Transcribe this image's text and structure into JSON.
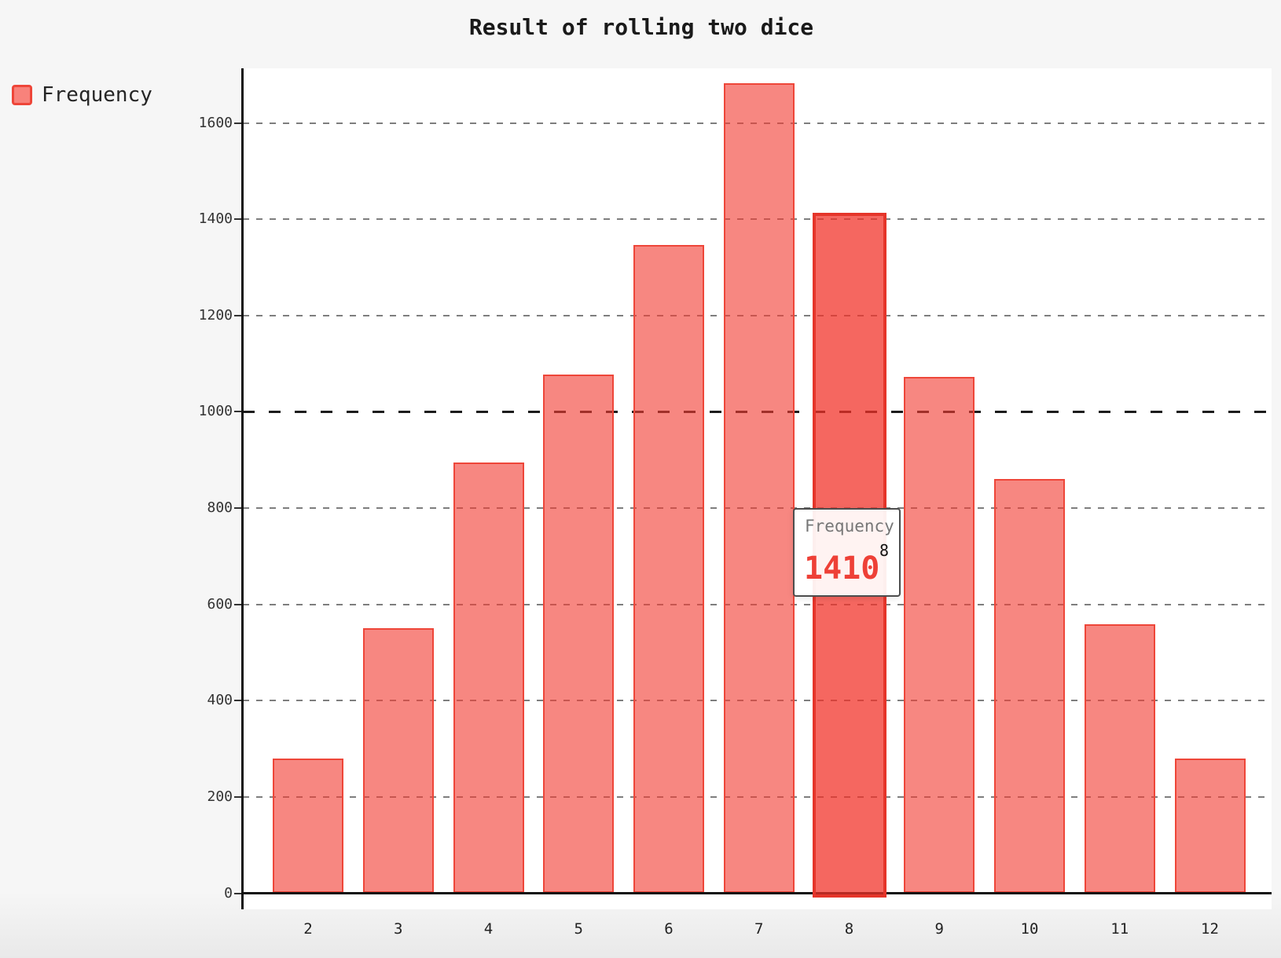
{
  "page": {
    "title": "Result of rolling two dice"
  },
  "legend": {
    "position": "top-left",
    "items": [
      {
        "label": "Frequency",
        "color": "#f8827b",
        "border_color": "#ee4639"
      }
    ]
  },
  "tooltip": {
    "series_name": "Frequency",
    "category": "8",
    "value": "1410"
  },
  "chart_data": {
    "type": "bar",
    "title": "Result of rolling two dice",
    "categories": [
      "2",
      "3",
      "4",
      "5",
      "6",
      "7",
      "8",
      "9",
      "10",
      "11",
      "12"
    ],
    "series": [
      {
        "name": "Frequency",
        "values": [
          280,
          550,
          895,
          1078,
          1346,
          1682,
          1410,
          1072,
          860,
          558,
          279
        ]
      }
    ],
    "xlabel": "",
    "ylabel": "",
    "ylim": [
      0,
      1600
    ],
    "ytick_interval": 200,
    "grid": "horizontal-dashed",
    "emphasized_gridline": 1000,
    "legend_position": "top-left",
    "highlighted": {
      "series": "Frequency",
      "category": "8",
      "value": 1410
    }
  },
  "colors": {
    "bar_fill": "rgba(242,62,52,0.62)",
    "bar_border": "#ee4639",
    "bar_highlight_fill": "rgba(241,50,40,0.74)",
    "bar_highlight_border": "#e5352a",
    "accent_red": "#ee4037",
    "axis": "#111111",
    "gridline": "#7e7e7e",
    "gridline_emphasis": "#1c1c1c",
    "page_bg": "#f6f6f6",
    "plot_bg": "#ffffff"
  }
}
